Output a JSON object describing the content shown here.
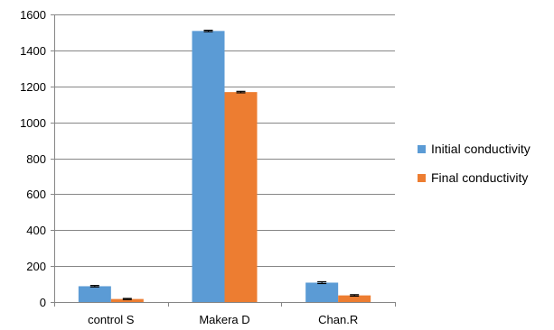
{
  "chart_data": {
    "type": "bar",
    "categories": [
      "control S",
      "Makera D",
      "Chan.R"
    ],
    "series": [
      {
        "name": "Initial conductivity",
        "color": "#5b9bd5",
        "values": [
          88,
          1508,
          108
        ],
        "errors": [
          4,
          4,
          5
        ]
      },
      {
        "name": "Final conductivity",
        "color": "#ed7d31",
        "values": [
          17,
          1168,
          37
        ],
        "errors": [
          3,
          4,
          4
        ]
      }
    ],
    "title": "",
    "xlabel": "",
    "ylabel": "",
    "ylim": [
      0,
      1600
    ],
    "yticks": [
      0,
      200,
      400,
      600,
      800,
      1000,
      1200,
      1400,
      1600
    ],
    "ytick_labels": [
      "0",
      "200",
      "400",
      "600",
      "800",
      "1000",
      "1200",
      "1400",
      "1600"
    ],
    "grid": true,
    "legend_position": "right"
  }
}
